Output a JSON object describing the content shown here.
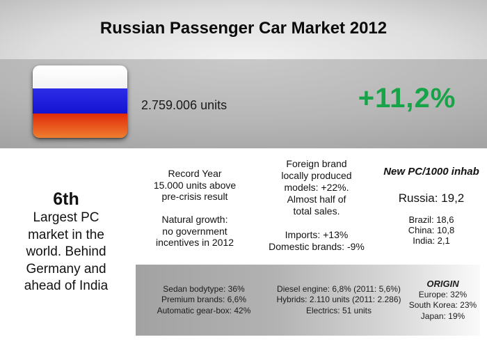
{
  "title": "Russian Passenger Car Market 2012",
  "colors": {
    "growth_green": "#17a347",
    "flag_white": "#ffffff",
    "flag_blue": "#1b1bd6",
    "flag_red": "#e33110",
    "band_gray": "#b0b0b0",
    "panel_gray": "#a8a8a8"
  },
  "header": {
    "flag": "russia-flag",
    "units": "2.759.006 units",
    "growth": "+11,2%"
  },
  "stats": {
    "rank_big": "6th",
    "rank_text": "Largest PC\nmarket in the\nworld. Behind\nGermany and\nahead of India",
    "record": "Record Year\n15.000 units above\npre-crisis result\n\nNatural growth:\nno government\nincentives in 2012",
    "foreign": "Foreign brand\nlocally produced\nmodels: +22%.\nAlmost half of\ntotal sales.\n\nImports: +13%\nDomestic brands: -9%",
    "pc1000": {
      "title": "New PC/1000 inhab",
      "russia": "Russia: 19,2",
      "others": "Brazil: 18,6\nChina: 10,8\nIndia: 2,1"
    }
  },
  "details": {
    "body_stats": "Sedan bodytype: 36%\nPremium brands: 6,6%\nAutomatic gear-box: 42%",
    "engine_stats": "Diesel engine: 6,8% (2011: 5,6%)\nHybrids: 2.110 units (2011: 2.286)\nElectrics: 51 units",
    "origin_title": "ORIGIN",
    "origin_stats": "Europe: 32%\nSouth Korea: 23%\nJapan: 19%"
  }
}
